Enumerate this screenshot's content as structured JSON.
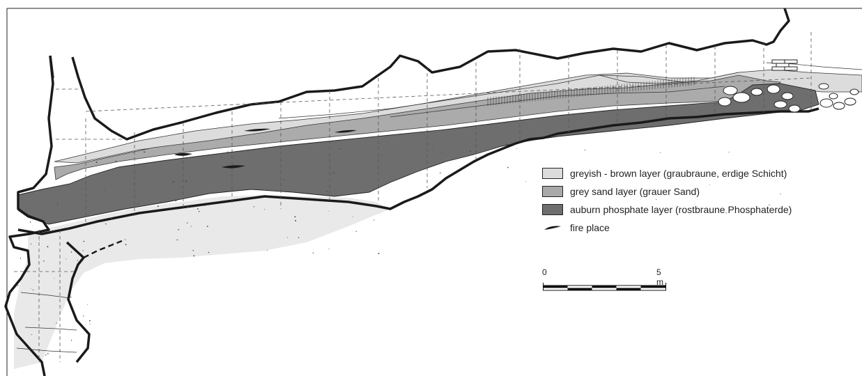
{
  "legend": {
    "items": [
      {
        "label": "greyish - brown layer (graubraune, erdige Schicht)",
        "color": "#dcdcdc"
      },
      {
        "label": "grey sand layer (grauer Sand)",
        "color": "#a9a9a9"
      },
      {
        "label": "auburn phosphate layer (rostbraune Phosphaterde)",
        "color": "#6e6e6e"
      },
      {
        "label": "fire place",
        "color": "#1a1a1a"
      }
    ]
  },
  "scale": {
    "start_label": "0",
    "end_label": "5 m"
  },
  "colors": {
    "outline": "#1a1a1a",
    "grid": "#555555",
    "speckle": "#444444"
  }
}
